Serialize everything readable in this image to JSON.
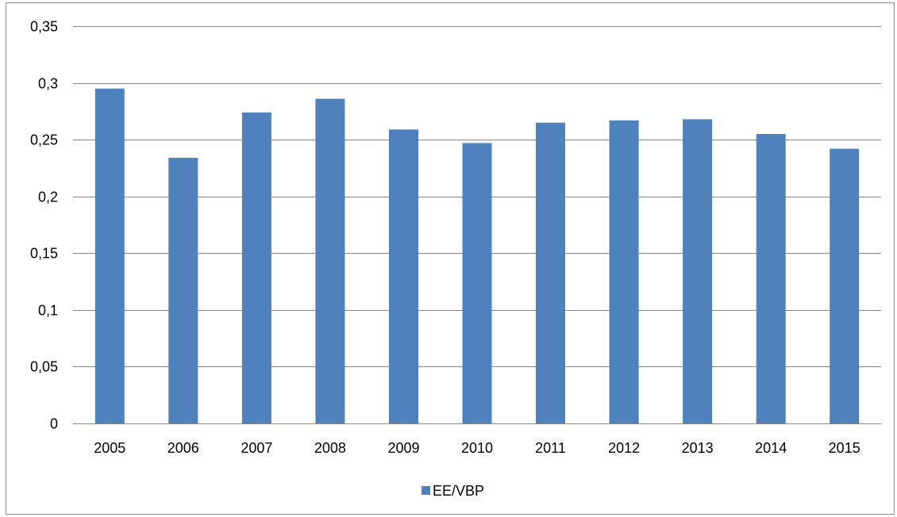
{
  "chart_data": {
    "type": "bar",
    "title": "",
    "xlabel": "",
    "ylabel": "",
    "categories": [
      "2005",
      "2006",
      "2007",
      "2008",
      "2009",
      "2010",
      "2011",
      "2012",
      "2013",
      "2014",
      "2015"
    ],
    "series": [
      {
        "name": "EE/VBP",
        "values": [
          0.295,
          0.234,
          0.274,
          0.286,
          0.259,
          0.247,
          0.265,
          0.267,
          0.268,
          0.255,
          0.242
        ]
      }
    ],
    "ylim": [
      0,
      0.35
    ],
    "yticks": [
      0,
      0.05,
      0.1,
      0.15,
      0.2,
      0.25,
      0.3,
      0.35
    ],
    "ytick_labels": [
      "0",
      "0,05",
      "0,1",
      "0,15",
      "0,2",
      "0,25",
      "0,3",
      "0,35"
    ],
    "grid": true,
    "legend_position": "bottom",
    "colors": {
      "bar": "#4F81BD",
      "grid": "#868686",
      "frame": "#8c8c8c"
    }
  }
}
